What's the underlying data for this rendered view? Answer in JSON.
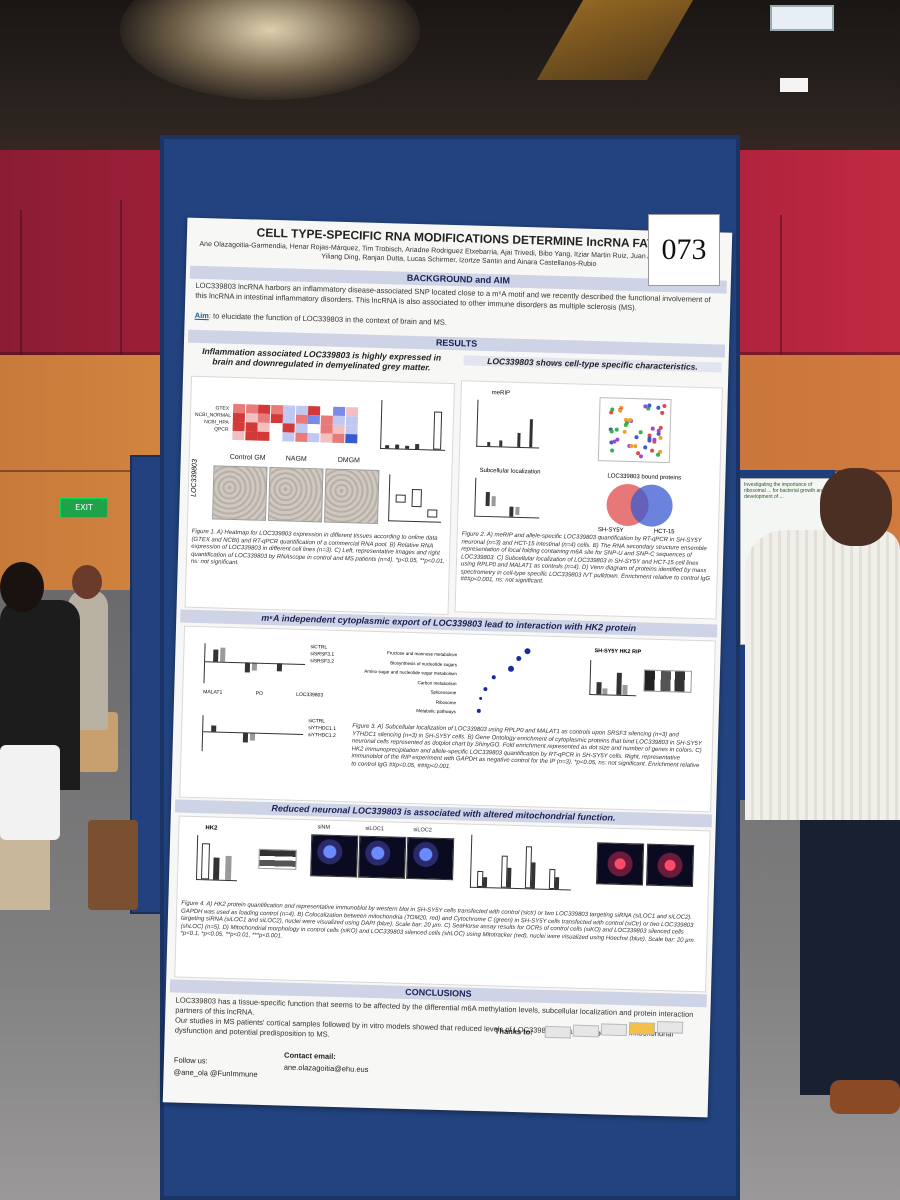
{
  "poster": {
    "number": "073",
    "title": "CELL TYPE-SPECIFIC RNA MODIFICATIONS DETERMINE lncRNA FATE",
    "authors": "Ane Olazagoitia-Garmendia, Henar Rojas-Márquez, Tim Trobisch, Ariadne Rodriguez Etxebarria, Ajai Trivedi, Bibo Yang, Itziar Martin Ruiz, Juan Anguita, Javier Meana, Yiliang Ding, Ranjan Dutta, Lucas Schirmer, Izortze Santin and Ainara Castellanos-Rubio",
    "background_title": "BACKGROUND and AIM",
    "background_text": "LOC339803 lncRNA harbors an inflammatory disease-associated SNP located close to a m⁶A motif and we recently described the functional involvement of this lncRNA in intestinal inflammatory disorders. This lncRNA is also associated to other immune disorders as multiple sclerosis (MS).",
    "aim_label": "Aim",
    "aim_text": ": to elucidate the function of LOC339803 in the context of brain and MS.",
    "results_title": "RESULTS",
    "left_heading": "Inflammation associated LOC339803 is highly expressed in brain and downregulated in demyelinated grey matter.",
    "right_heading": "LOC339803 shows cell-type specific characteristics.",
    "micro_labels": [
      "Control GM",
      "NAGM",
      "DMGM"
    ],
    "row_label": "LOC339803",
    "heat_rows": [
      "GTEX",
      "NCBI_NORMAL",
      "NCBI_HPA",
      "QPCR"
    ],
    "fig1_caption": "Figure 1. A) Heatmap for LOC339803 expression in different tissues according to online data (GTEX and NCBI) and RT-qPCR quantification of a commercial RNA pool. B) Relative RNA expression of LOC339803 in different cell lines (n=3). C) Left, representative images and right quantification of LOC339803 by RNAscope in control and MS patients (n=4). *p<0.05, **p<0.01, ns: not significant.",
    "fig2_caption": "Figure 2. A) meRIP and allele-specific LOC339803 quantification by RT-qPCR in SH-SY5Y neuronal (n=3) and HCT-15 intestinal (n=4) cells. B) The RNA secondary structure ensemble representation of local folding containing m6A site for SNP-U and SNP-C sequences of LOC339803. C) Subcellular localization of LOC339803 in SH-SY5Y and HCT-15 cell lines using RPLP0 and MALAT1 as controls (n=4). D) Venn diagram of proteins identified by mass spectrometry in cell-type specific LOC339803 IVT pulldown. Enrichment relative to control IgG ###p<0.001, ns: not significant.",
    "venn_left": "SH-SY5Y",
    "venn_right": "HCT-15",
    "venn_title": "LOC339803 bound proteins",
    "merip_label": "meRIP",
    "subcell_label": "Subcellular localization",
    "sec3_title": "m⁶A independent cytoplasmic export of LOC339803 lead to interaction with HK2 protein",
    "fig3_caption": "Figure 3. A) Subcellular localization of LOC339803 using RPLP0 and MALAT1 as controls upon SRSF3 silencing (n=3) and YTHDC1 silencing (n=3) in SH-SY5Y cells. B) Gene Ontology enrichment of cytoplasmic proteins that bind LOC339803 in SH-SY5Y neuronal cells represented as dotplot chart by ShinyGO. Fold enrichment represented as dot size and number of genes in colors. C) HK2 immunoprecipitation and allele-specific LOC339803 quantification by RT-qPCR in SH-SY5Y cells. Right, representative immunoblot of the RIP experiment with GAPDH as negative control for the IP (n=3). *p<0.05, ns: not significant. Enrichment relative to control IgG ##p<0.05, ###p<0.001.",
    "go_terms": [
      "Fructose and mannose metabolism",
      "Biosynthesis of nucleotide sugars",
      "Amino sugar and nucleotide sugar metabolism",
      "Carbon metabolism",
      "Spliceosome",
      "Ribosome",
      "Metabolic pathways"
    ],
    "fig3_xlabels": [
      "MALAT1",
      "PO",
      "LOC339803"
    ],
    "fig3_legend": [
      "siCTRL",
      "siSRSF3.1",
      "siSRSF3.2"
    ],
    "fig3_legend2": [
      "siCTRL",
      "siYTHDC1.1",
      "siYTHDC1.2"
    ],
    "hk2_rip": "SH-SY5Y HK2 RIP",
    "sec4_title": "Reduced neuronal LOC339803 is associated with altered mitochondrial function.",
    "hk2_label": "HK2",
    "fluoro_labels": [
      "siNM",
      "siLOC1",
      "siLOC2"
    ],
    "fig4_caption": "Figure 4. A) HK2 protein quantification and representative immunoblot by western blot in SH-SY5Y cells transfected with control (sictr) or two LOC339803 targeting siRNA (siLOC1 and siLOC2). GAPDH was used as loading control (n=4). B) Colocalization between mitochondria (TOM20, red) and Cytochrome C (green) in SH-SY5Y cells transfected with control (siCtr) or two LOC339803 targeting siRNA (siLOC1 and siLOC2), nuclei were visualized using DAPI (blue). Scale bar: 20 µm. C) SeaHorse assay results for OCRs of control cells (siKO) and LOC339803 silenced cells (shLOC) (n=5). D) Mitochondrial morphology in control cells (siKO) and LOC339803 silenced cells (shLOC) using Mitotracker (red), nuclei were visualized using Hoechst (blue). Scale bar: 20 µm. *p<0.1, *p<0.05, **p<0.01, ***p<0.001.",
    "conclusions_title": "CONCLUSIONS",
    "conclusions": [
      "LOC339803 has a tissue-specific function that seems to be affected by the differential m6A methylation levels, subcellular localization and protein interaction partners of this lncRNA.",
      "Our studies in MS patients' cortical samples followed by in vitro models showed that reduced levels of LOC339803 can ultimately lead to mitochondrial dysfunction and potential predisposition to MS."
    ],
    "follow_label": "Follow us:",
    "handles": "@ane_ola @FunImmune",
    "contact_label": "Contact email:",
    "contact_email": "ane.olazagoitia@ehu.eus",
    "thanks_label": "Thanks to:"
  },
  "background_poster": {
    "title": "Investigating the importance of ribosomal ... for bacterial growth and development of ..."
  },
  "scene": {
    "exit_sign": "EXIT"
  },
  "colors": {
    "panel_blue": "#22437f",
    "wall_red": "#b0203d",
    "wood": "#d98a44",
    "section_bar": "#cfd3e6",
    "heat_red": "#d23a3a",
    "heat_blue": "#3a5ad2"
  }
}
